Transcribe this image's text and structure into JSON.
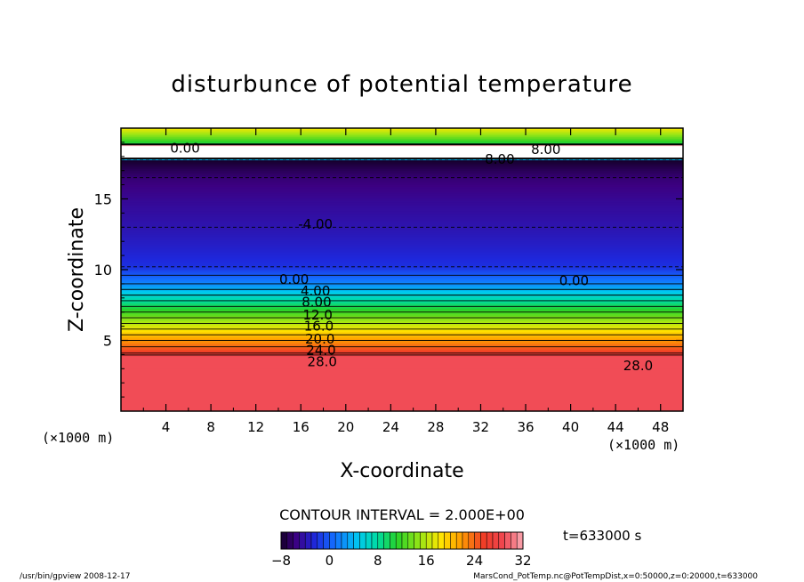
{
  "chart_data": {
    "type": "heatmap",
    "title": "disturbunce of potential temperature",
    "xlabel": "X-coordinate",
    "ylabel": "Z-coordinate",
    "x_unit_left": "(×1000 m)",
    "x_unit_right": "(×1000 m)",
    "xlim": [
      0,
      50
    ],
    "ylim": [
      0,
      20
    ],
    "x_ticks": [
      4,
      8,
      12,
      16,
      20,
      24,
      28,
      32,
      36,
      40,
      44,
      48
    ],
    "y_ticks": [
      5,
      10,
      15
    ],
    "z_profile": [
      {
        "z": 0,
        "value": 29
      },
      {
        "z": 3.9,
        "value": 29
      },
      {
        "z": 4.1,
        "value": 26
      },
      {
        "z": 5.0,
        "value": 22
      },
      {
        "z": 6.0,
        "value": 17
      },
      {
        "z": 7.0,
        "value": 12
      },
      {
        "z": 8.0,
        "value": 7
      },
      {
        "z": 9.0,
        "value": 2
      },
      {
        "z": 9.6,
        "value": 0
      },
      {
        "z": 10.2,
        "value": -2
      },
      {
        "z": 11.5,
        "value": -3
      },
      {
        "z": 13.0,
        "value": -4
      },
      {
        "z": 15.0,
        "value": -5
      },
      {
        "z": 16.5,
        "value": -6
      },
      {
        "z": 17.2,
        "value": -7
      },
      {
        "z": 17.8,
        "value": -8
      },
      {
        "z": 17.85,
        "value": 40
      },
      {
        "z": 18.8,
        "value": 40
      },
      {
        "z": 18.85,
        "value": 10
      },
      {
        "z": 20,
        "value": 18
      }
    ],
    "contour_labels": [
      {
        "text": "0.00",
        "x": 5.7,
        "z": 18.6
      },
      {
        "text": "8.00",
        "x": 33.7,
        "z": 17.8
      },
      {
        "text": "8.00",
        "x": 37.8,
        "z": 18.5
      },
      {
        "text": "-4.00",
        "x": 17.3,
        "z": 13.2
      },
      {
        "text": "0.00",
        "x": 15.4,
        "z": 9.3
      },
      {
        "text": "0.00",
        "x": 40.3,
        "z": 9.2
      },
      {
        "text": "4.00",
        "x": 17.3,
        "z": 8.5
      },
      {
        "text": "8.00",
        "x": 17.4,
        "z": 7.7
      },
      {
        "text": "12.0",
        "x": 17.5,
        "z": 6.8
      },
      {
        "text": "16.0",
        "x": 17.6,
        "z": 6.0
      },
      {
        "text": "20.0",
        "x": 17.7,
        "z": 5.1
      },
      {
        "text": "24.0",
        "x": 17.8,
        "z": 4.3
      },
      {
        "text": "28.0",
        "x": 17.9,
        "z": 3.5
      },
      {
        "text": "28.0",
        "x": 46.0,
        "z": 3.2
      }
    ],
    "contour_interval_label": "CONTOUR INTERVAL = 2.000E+00",
    "colorbar": {
      "min": -8,
      "max": 32,
      "ticks": [
        -8,
        0,
        8,
        16,
        24,
        32
      ],
      "tick_labels": [
        "−8",
        "0",
        "8",
        "16",
        "24",
        "32"
      ]
    },
    "time_label": "t=633000 s",
    "grid": false,
    "legend": "colorbar-bottom"
  },
  "footer": {
    "left": "/usr/bin/gpview  2008-12-17",
    "right": "MarsCond_PotTemp.nc@PotTempDist,x=0:50000,z=0:20000,t=633000"
  },
  "colors": {
    "red": "#f03c2a",
    "white": "#ffffff",
    "black": "#000000"
  }
}
